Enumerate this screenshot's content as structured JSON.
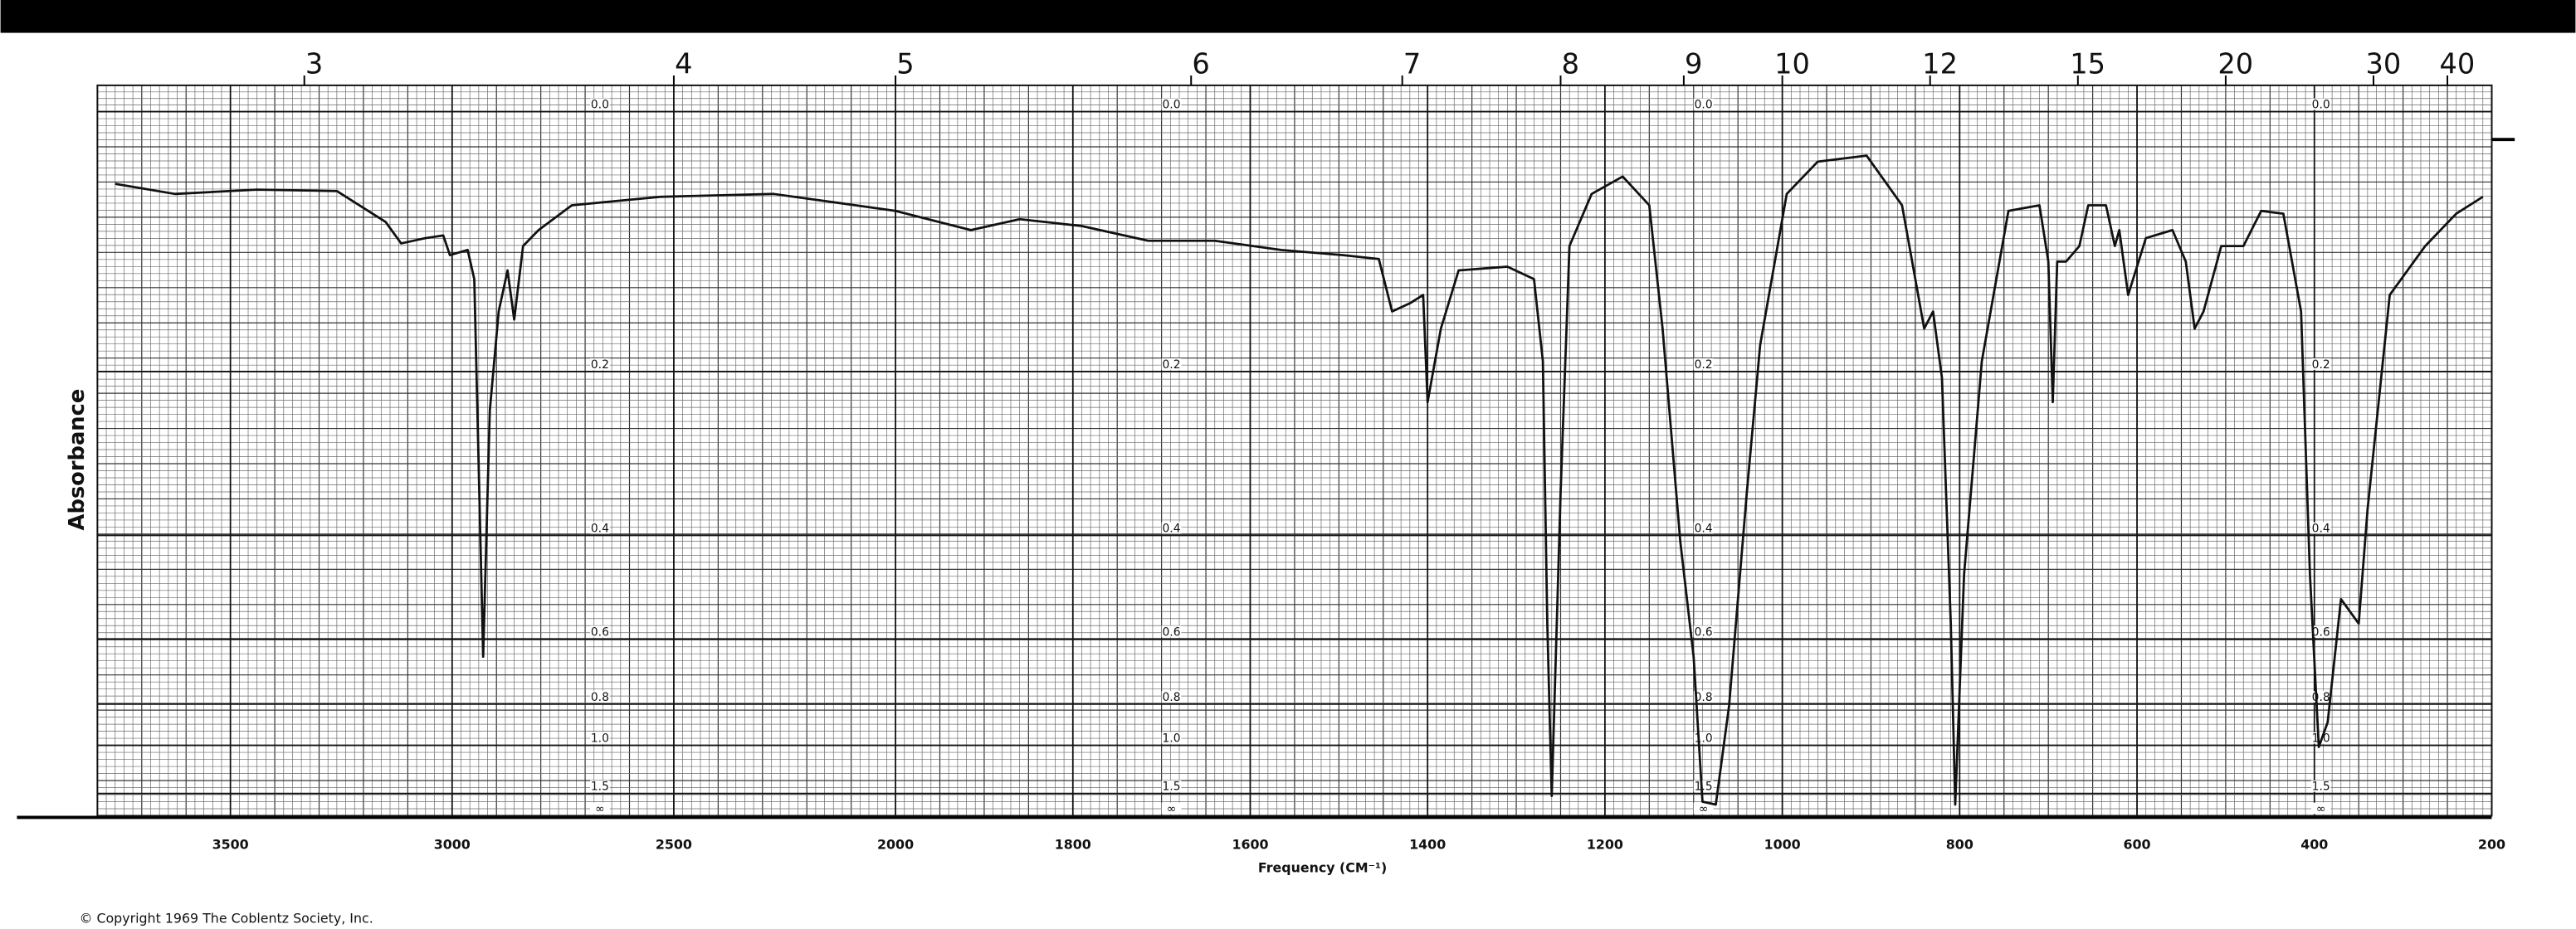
{
  "chart_data": {
    "type": "line",
    "x_label": "Frequency (CM⁻¹)",
    "y_label": "Absorbance",
    "footer": "© Copyright 1969   The Coblentz Society, Inc.",
    "color": "#111111",
    "xlim": [
      3800,
      200
    ],
    "x_scale": {
      "break": 2000,
      "compression_above": 2
    },
    "xticks": [
      3500,
      3000,
      2500,
      2000,
      1800,
      1600,
      1400,
      1200,
      1000,
      800,
      600,
      400,
      200
    ],
    "x2_unit": "micrometers",
    "x2ticks": [
      3,
      4,
      5,
      6,
      7,
      8,
      9,
      10,
      12,
      15,
      20,
      30,
      40
    ],
    "yscale": "absorbance",
    "ylim": [
      0,
      null
    ],
    "yticks": [
      {
        "value": 0,
        "label": "0.0"
      },
      0.2,
      0.4,
      0.6,
      0.8,
      {
        "value": 1,
        "label": "1.0"
      },
      1.5,
      {
        "value": null,
        "label": "∞"
      }
    ],
    "grid": true,
    "x": [
      3760,
      3625,
      3440,
      3260,
      3150,
      3115,
      3060,
      3020,
      3005,
      2965,
      2950,
      2930,
      2915,
      2895,
      2875,
      2860,
      2840,
      2805,
      2730,
      2530,
      2275,
      2090,
      2000,
      1915,
      1860,
      1790,
      1715,
      1640,
      1565,
      1495,
      1455,
      1440,
      1420,
      1405,
      1400,
      1385,
      1365,
      1310,
      1280,
      1270,
      1265,
      1260,
      1250,
      1240,
      1215,
      1180,
      1150,
      1135,
      1115,
      1100,
      1090,
      1075,
      1060,
      1040,
      1025,
      995,
      960,
      905,
      865,
      850,
      840,
      830,
      820,
      810,
      805,
      795,
      775,
      745,
      710,
      700,
      695,
      690,
      680,
      665,
      655,
      635,
      625,
      620,
      610,
      590,
      560,
      545,
      535,
      525,
      505,
      480,
      460,
      435,
      415,
      405,
      395,
      385,
      370,
      350,
      340,
      315,
      275,
      240,
      210
    ],
    "values": [
      0.047,
      0.054,
      0.051,
      0.052,
      0.074,
      0.09,
      0.086,
      0.084,
      0.099,
      0.095,
      0.118,
      0.646,
      0.24,
      0.145,
      0.111,
      0.152,
      0.092,
      0.08,
      0.062,
      0.056,
      0.054,
      0.062,
      0.066,
      0.08,
      0.072,
      0.077,
      0.088,
      0.088,
      0.095,
      0.099,
      0.102,
      0.145,
      0.138,
      0.131,
      0.231,
      0.16,
      0.111,
      0.108,
      0.118,
      0.19,
      0.564,
      1.55,
      0.338,
      0.092,
      0.054,
      0.042,
      0.062,
      0.16,
      0.41,
      0.646,
      1.7,
      1.8,
      0.806,
      0.338,
      0.175,
      0.054,
      0.032,
      0.028,
      0.062,
      0.118,
      0.16,
      0.145,
      0.206,
      0.564,
      1.8,
      0.465,
      0.19,
      0.066,
      0.062,
      0.104,
      0.231,
      0.104,
      0.104,
      0.092,
      0.062,
      0.062,
      0.092,
      0.08,
      0.131,
      0.086,
      0.08,
      0.104,
      0.16,
      0.145,
      0.092,
      0.092,
      0.066,
      0.068,
      0.145,
      0.465,
      1.01,
      0.877,
      0.512,
      0.564,
      0.361,
      0.131,
      0.092,
      0.068,
      0.056
    ]
  }
}
